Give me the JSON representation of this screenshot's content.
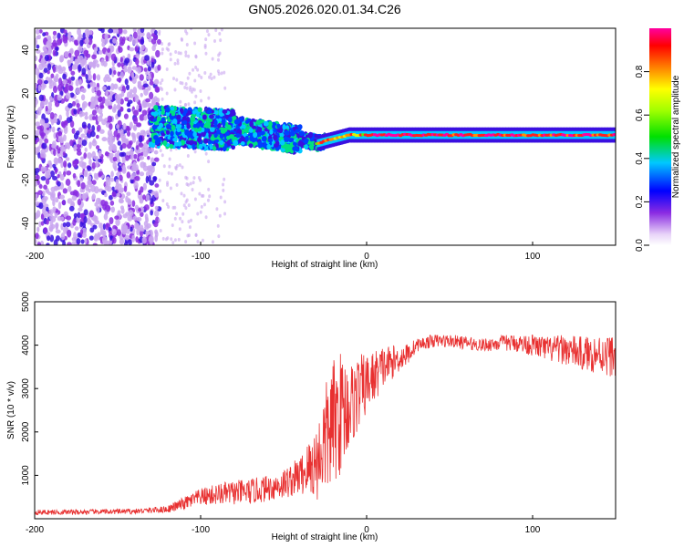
{
  "title": "GN05.2026.020.01.34.C26",
  "chart_data": [
    {
      "type": "heatmap",
      "name": "spectrogram",
      "xlabel": "Height of straight line (km)",
      "ylabel": "Frequency (Hz)",
      "xlim": [
        -200,
        150
      ],
      "ylim": [
        -50,
        50
      ],
      "xticks": [
        -200,
        -100,
        0,
        100
      ],
      "yticks": [
        -40,
        -20,
        0,
        20,
        40
      ],
      "colorbar": {
        "label": "Normalized spectral amplitude",
        "range": [
          0,
          1
        ],
        "ticks": [
          0,
          0.2,
          0.4,
          0.6,
          0.8
        ],
        "tick_labels": [
          "0.0",
          "0.2",
          "0.4",
          "0.6",
          "0.8"
        ]
      },
      "description_regions": [
        {
          "x_range": [
            -200,
            -130
          ],
          "character": "broadband noise, amplitude ~0.0-0.2"
        },
        {
          "x_range": [
            -130,
            -30
          ],
          "character": "signal band near 0 Hz, drifting from ~+5 Hz to ~-3 Hz, amplitude ~0.1-0.5"
        },
        {
          "x_range": [
            -30,
            150
          ],
          "character": "narrow tone at ~0-1 Hz, amplitude ~0.8-1.0"
        }
      ]
    },
    {
      "type": "line",
      "name": "snr",
      "xlabel": "Height of straight line (km)",
      "ylabel": "SNR (10 * v/v)",
      "xlim": [
        -200,
        150
      ],
      "ylim": [
        0,
        5000
      ],
      "xticks": [
        -200,
        -100,
        0,
        100
      ],
      "yticks": [
        1000,
        2000,
        3000,
        4000,
        5000
      ],
      "color": "#e83030",
      "series": {
        "name": "SNR",
        "x": [
          -200,
          -180,
          -160,
          -140,
          -120,
          -110,
          -100,
          -90,
          -80,
          -70,
          -60,
          -50,
          -40,
          -30,
          -25,
          -20,
          -15,
          -10,
          -5,
          0,
          5,
          10,
          15,
          20,
          25,
          30,
          40,
          50,
          60,
          70,
          80,
          90,
          100,
          110,
          120,
          130,
          140,
          150
        ],
        "y": [
          150,
          150,
          160,
          170,
          220,
          350,
          500,
          560,
          600,
          620,
          700,
          800,
          1000,
          1300,
          1800,
          2200,
          2500,
          2600,
          2900,
          3100,
          3300,
          3500,
          3600,
          3700,
          3800,
          4000,
          4100,
          4100,
          4050,
          4000,
          4050,
          4050,
          4000,
          3900,
          3900,
          3800,
          3800,
          3750
        ],
        "noise_amplitude": [
          60,
          60,
          60,
          60,
          80,
          150,
          200,
          250,
          280,
          300,
          300,
          350,
          450,
          900,
          1300,
          1500,
          1400,
          1000,
          900,
          700,
          600,
          500,
          400,
          300,
          250,
          150,
          150,
          150,
          150,
          150,
          180,
          200,
          250,
          300,
          350,
          400,
          450,
          500
        ]
      }
    }
  ]
}
